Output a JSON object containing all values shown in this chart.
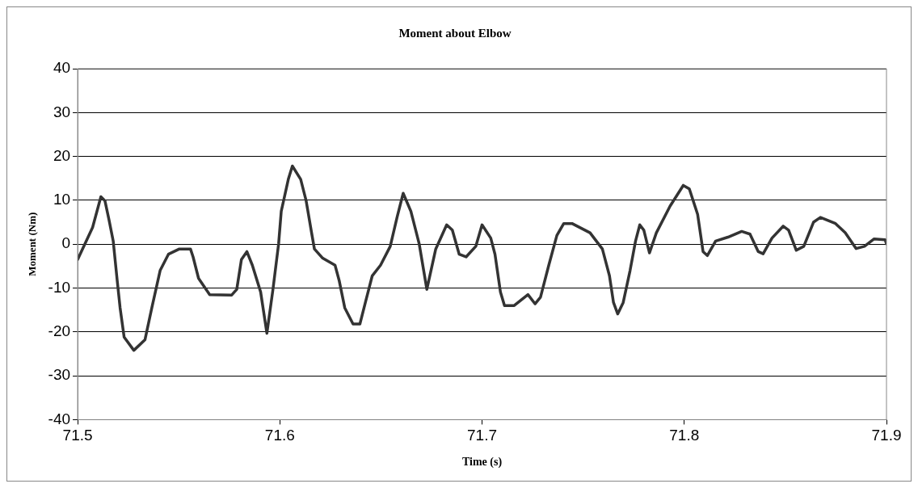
{
  "chart_data": {
    "type": "line",
    "title": "Moment about Elbow",
    "xlabel": "Time (s)",
    "ylabel": "Moment (Nm)",
    "xlim": [
      71.5,
      71.9
    ],
    "xticks": [
      71.5,
      71.6,
      71.7,
      71.8,
      71.9
    ],
    "ylim": [
      -40,
      40
    ],
    "yticks": [
      -40,
      -30,
      -20,
      -10,
      0,
      10,
      20,
      30,
      40
    ],
    "grid": "y",
    "legend": false,
    "marker": "none",
    "line_style": "solid",
    "series": [
      {
        "color": "#333333",
        "x": [
          71.5,
          71.5074,
          71.5115,
          71.5135,
          71.5155,
          71.5176,
          71.5196,
          71.521,
          71.523,
          71.5278,
          71.5333,
          71.5367,
          71.5408,
          71.5449,
          71.5503,
          71.5558,
          71.5571,
          71.5598,
          71.5653,
          71.5762,
          71.5787,
          71.581,
          71.5837,
          71.5864,
          71.5905,
          71.5936,
          71.5966,
          71.5994,
          71.6007,
          71.6042,
          71.6062,
          71.6103,
          71.613,
          71.6157,
          71.6171,
          71.6212,
          71.6273,
          71.6294,
          71.6321,
          71.6362,
          71.6396,
          71.6423,
          71.6457,
          71.6498,
          71.6546,
          71.658,
          71.661,
          71.6648,
          71.6689,
          71.6727,
          71.6771,
          71.6825,
          71.6853,
          71.6887,
          71.6921,
          71.6969,
          71.7,
          71.7043,
          71.7064,
          71.7091,
          71.7111,
          71.7159,
          71.7227,
          71.7262,
          71.7289,
          71.733,
          71.737,
          71.7404,
          71.7445,
          71.7534,
          71.7595,
          71.763,
          71.765,
          71.7671,
          71.7698,
          71.7732,
          71.7759,
          71.778,
          71.78,
          71.7828,
          71.7862,
          71.793,
          71.7995,
          71.8025,
          71.8066,
          71.8093,
          71.8114,
          71.8155,
          71.8216,
          71.8284,
          71.8325,
          71.8366,
          71.839,
          71.8434,
          71.8489,
          71.8516,
          71.8554,
          71.8591,
          71.8639,
          71.8673,
          71.8748,
          71.8796,
          71.885,
          71.8891,
          71.8939,
          71.8993,
          71.9
        ],
        "values": [
          -3.5,
          3.8,
          10.8,
          9.9,
          5.6,
          0.7,
          -8.4,
          -14.5,
          -21.2,
          -24.2,
          -21.8,
          -14.5,
          -6,
          -2.3,
          -1.1,
          -1.1,
          -2.9,
          -7.8,
          -11.5,
          -11.6,
          -10.3,
          -3.5,
          -1.7,
          -4.8,
          -10.9,
          -20.3,
          -10.3,
          0.1,
          7.5,
          14.8,
          17.8,
          14.8,
          9.9,
          2.6,
          -1.1,
          -3.2,
          -4.8,
          -8.4,
          -14.5,
          -18.2,
          -18.2,
          -13.3,
          -7.2,
          -4.8,
          -0.5,
          6.2,
          11.6,
          7.5,
          0.1,
          -10.3,
          -1.1,
          4.4,
          3.2,
          -2.3,
          -2.9,
          -0.5,
          4.4,
          1.4,
          -2.3,
          -10.9,
          -14,
          -14,
          -11.5,
          -13.6,
          -12.1,
          -4.8,
          2,
          4.7,
          4.7,
          2.6,
          -1.1,
          -7.2,
          -13.3,
          -15.9,
          -13.3,
          -6,
          0.7,
          4.4,
          3.2,
          -2,
          2.6,
          8.7,
          13.4,
          12.6,
          6.8,
          -1.7,
          -2.6,
          0.7,
          1.6,
          2.9,
          2.3,
          -1.7,
          -2.2,
          1.4,
          4.1,
          3.2,
          -1.4,
          -0.5,
          5,
          6.1,
          4.7,
          2.6,
          -1,
          -0.5,
          1.2,
          1,
          0.1
        ]
      }
    ]
  }
}
